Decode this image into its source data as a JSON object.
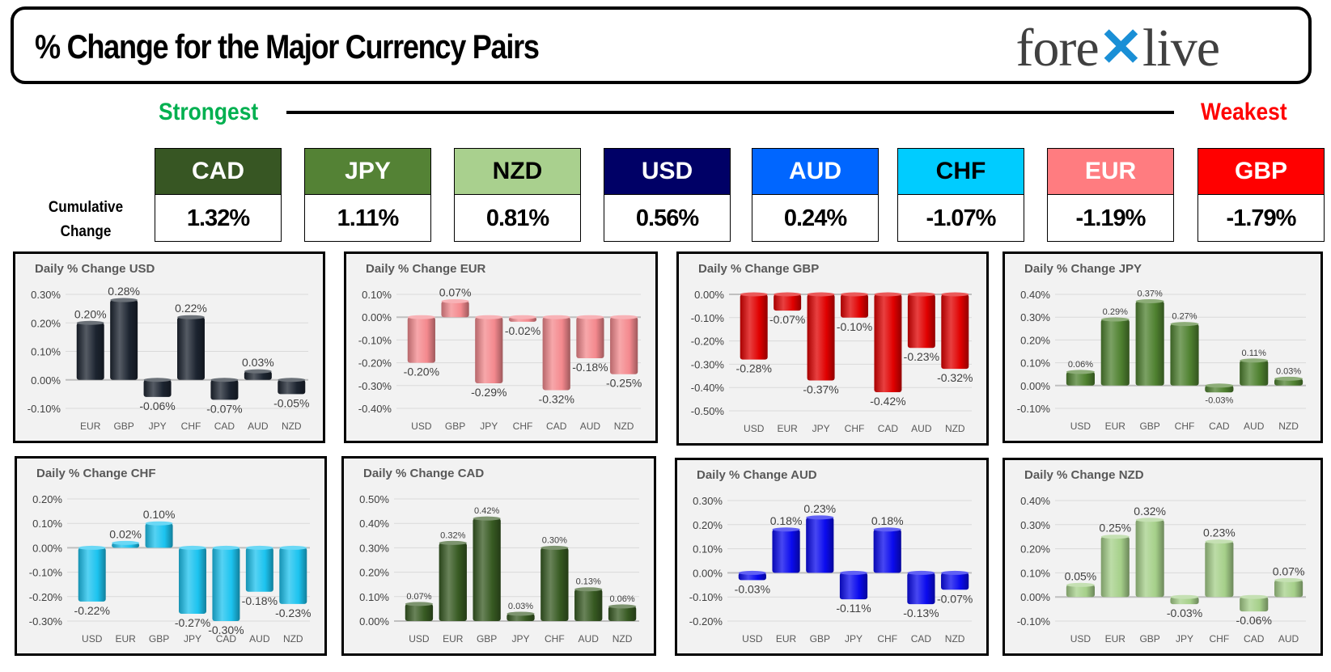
{
  "header": {
    "title": "% Change for the Major Currency Pairs",
    "logo_text": "forexlive"
  },
  "ranking": {
    "strongest_label": "Strongest",
    "weakest_label": "Weakest",
    "cumulative_label_1": "Cumulative",
    "cumulative_label_2": "Change"
  },
  "currencies": [
    {
      "code": "CAD",
      "change": "1.32%",
      "color": "#375623",
      "text_color": "#ffffff"
    },
    {
      "code": "JPY",
      "change": "1.11%",
      "color": "#548235",
      "text_color": "#ffffff"
    },
    {
      "code": "NZD",
      "change": "0.81%",
      "color": "#a9d08e",
      "text_color": "#000000"
    },
    {
      "code": "USD",
      "change": "0.56%",
      "color": "#000066",
      "text_color": "#ffffff"
    },
    {
      "code": "AUD",
      "change": "0.24%",
      "color": "#0066ff",
      "text_color": "#ffffff"
    },
    {
      "code": "CHF",
      "change": "-1.07%",
      "color": "#00ccff",
      "text_color": "#000000"
    },
    {
      "code": "EUR",
      "change": "-1.19%",
      "color": "#ff7c80",
      "text_color": "#ffffff"
    },
    {
      "code": "GBP",
      "change": "-1.79%",
      "color": "#ff0000",
      "text_color": "#ffffff"
    }
  ],
  "chart_data": [
    {
      "type": "bar",
      "title": "Daily % Change USD",
      "categories": [
        "EUR",
        "GBP",
        "JPY",
        "CHF",
        "CAD",
        "AUD",
        "NZD"
      ],
      "values": [
        0.2,
        0.28,
        -0.06,
        0.22,
        -0.07,
        0.03,
        -0.05
      ],
      "ylim": [
        -0.1,
        0.3
      ],
      "ticks": [
        -0.1,
        0.0,
        0.1,
        0.2,
        0.3
      ],
      "color": "#1c2430",
      "grid": true
    },
    {
      "type": "bar",
      "title": "Daily % Change EUR",
      "categories": [
        "USD",
        "GBP",
        "JPY",
        "CHF",
        "CAD",
        "AUD",
        "NZD"
      ],
      "values": [
        -0.2,
        0.07,
        -0.29,
        -0.02,
        -0.32,
        -0.18,
        -0.25
      ],
      "ylim": [
        -0.4,
        0.1
      ],
      "ticks": [
        -0.4,
        -0.3,
        -0.2,
        -0.1,
        0.0,
        0.1
      ],
      "color": "#f4898e",
      "grid": true
    },
    {
      "type": "bar",
      "title": "Daily % Change GBP",
      "categories": [
        "USD",
        "EUR",
        "JPY",
        "CHF",
        "CAD",
        "AUD",
        "NZD"
      ],
      "values": [
        -0.28,
        -0.07,
        -0.37,
        -0.1,
        -0.42,
        -0.23,
        -0.32
      ],
      "ylim": [
        -0.5,
        0.0
      ],
      "ticks": [
        -0.5,
        -0.4,
        -0.3,
        -0.2,
        -0.1,
        0.0
      ],
      "color": "#e00000",
      "grid": true
    },
    {
      "type": "bar",
      "title": "Daily % Change JPY",
      "categories": [
        "USD",
        "EUR",
        "GBP",
        "CHF",
        "CAD",
        "AUD",
        "NZD"
      ],
      "values": [
        0.06,
        0.29,
        0.37,
        0.27,
        -0.03,
        0.11,
        0.03
      ],
      "ylim": [
        -0.1,
        0.4
      ],
      "ticks": [
        -0.1,
        0.0,
        0.1,
        0.2,
        0.3,
        0.4
      ],
      "color": "#4f8130",
      "grid": true,
      "small_labels": true
    },
    {
      "type": "bar",
      "title": "Daily % Change CHF",
      "categories": [
        "USD",
        "EUR",
        "GBP",
        "JPY",
        "CAD",
        "AUD",
        "NZD"
      ],
      "values": [
        -0.22,
        0.02,
        0.1,
        -0.27,
        -0.3,
        -0.18,
        -0.23
      ],
      "ylim": [
        -0.3,
        0.2
      ],
      "ticks": [
        -0.3,
        -0.2,
        -0.1,
        0.0,
        0.1,
        0.2
      ],
      "color": "#1cc3ef",
      "grid": true
    },
    {
      "type": "bar",
      "title": "Daily % Change CAD",
      "categories": [
        "USD",
        "EUR",
        "GBP",
        "JPY",
        "CHF",
        "AUD",
        "NZD"
      ],
      "values": [
        0.07,
        0.32,
        0.42,
        0.03,
        0.3,
        0.13,
        0.06
      ],
      "ylim": [
        0.0,
        0.5
      ],
      "ticks": [
        0.0,
        0.1,
        0.2,
        0.3,
        0.4,
        0.5
      ],
      "color": "#375a22",
      "grid": true,
      "small_labels": true
    },
    {
      "type": "bar",
      "title": "Daily % Change AUD",
      "categories": [
        "USD",
        "EUR",
        "GBP",
        "JPY",
        "CHF",
        "CAD",
        "NZD"
      ],
      "values": [
        -0.03,
        0.18,
        0.23,
        -0.11,
        0.18,
        -0.13,
        -0.07
      ],
      "ylim": [
        -0.2,
        0.3
      ],
      "ticks": [
        -0.2,
        -0.1,
        0.0,
        0.1,
        0.2,
        0.3
      ],
      "color": "#0a0aee",
      "grid": true
    },
    {
      "type": "bar",
      "title": "Daily % Change NZD",
      "categories": [
        "USD",
        "EUR",
        "GBP",
        "JPY",
        "CHF",
        "CAD",
        "AUD"
      ],
      "values": [
        0.05,
        0.25,
        0.32,
        -0.03,
        0.23,
        -0.06,
        0.07
      ],
      "ylim": [
        -0.1,
        0.4
      ],
      "ticks": [
        -0.1,
        0.0,
        0.1,
        0.2,
        0.3,
        0.4
      ],
      "color": "#a6d08a",
      "grid": true
    }
  ]
}
